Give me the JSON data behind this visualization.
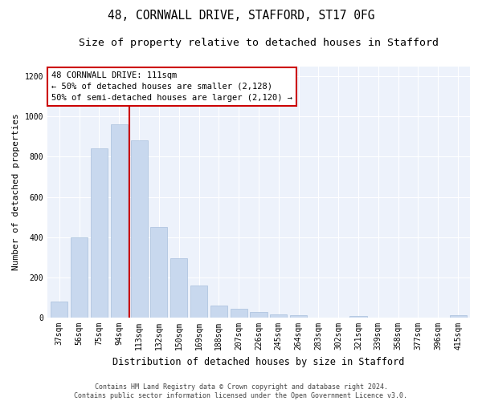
{
  "title": "48, CORNWALL DRIVE, STAFFORD, ST17 0FG",
  "subtitle": "Size of property relative to detached houses in Stafford",
  "xlabel": "Distribution of detached houses by size in Stafford",
  "ylabel": "Number of detached properties",
  "categories": [
    "37sqm",
    "56sqm",
    "75sqm",
    "94sqm",
    "113sqm",
    "132sqm",
    "150sqm",
    "169sqm",
    "188sqm",
    "207sqm",
    "226sqm",
    "245sqm",
    "264sqm",
    "283sqm",
    "302sqm",
    "321sqm",
    "339sqm",
    "358sqm",
    "377sqm",
    "396sqm",
    "415sqm"
  ],
  "values": [
    80,
    400,
    840,
    960,
    880,
    450,
    295,
    160,
    60,
    45,
    30,
    18,
    14,
    0,
    0,
    10,
    0,
    0,
    0,
    0,
    13
  ],
  "bar_color": "#c8d8ee",
  "bar_edge_color": "#a8c0dc",
  "red_line_x": 3.5,
  "red_line_color": "#cc0000",
  "annotation_text": "48 CORNWALL DRIVE: 111sqm\n← 50% of detached houses are smaller (2,128)\n50% of semi-detached houses are larger (2,120) →",
  "annotation_box_color": "#ffffff",
  "annotation_box_edge_color": "#cc0000",
  "ylim": [
    0,
    1250
  ],
  "yticks": [
    0,
    200,
    400,
    600,
    800,
    1000,
    1200
  ],
  "background_color": "#edf2fb",
  "footer_text": "Contains HM Land Registry data © Crown copyright and database right 2024.\nContains public sector information licensed under the Open Government Licence v3.0.",
  "title_fontsize": 10.5,
  "subtitle_fontsize": 9.5,
  "xlabel_fontsize": 8.5,
  "ylabel_fontsize": 8,
  "tick_fontsize": 7,
  "annotation_fontsize": 7.5,
  "footer_fontsize": 6
}
